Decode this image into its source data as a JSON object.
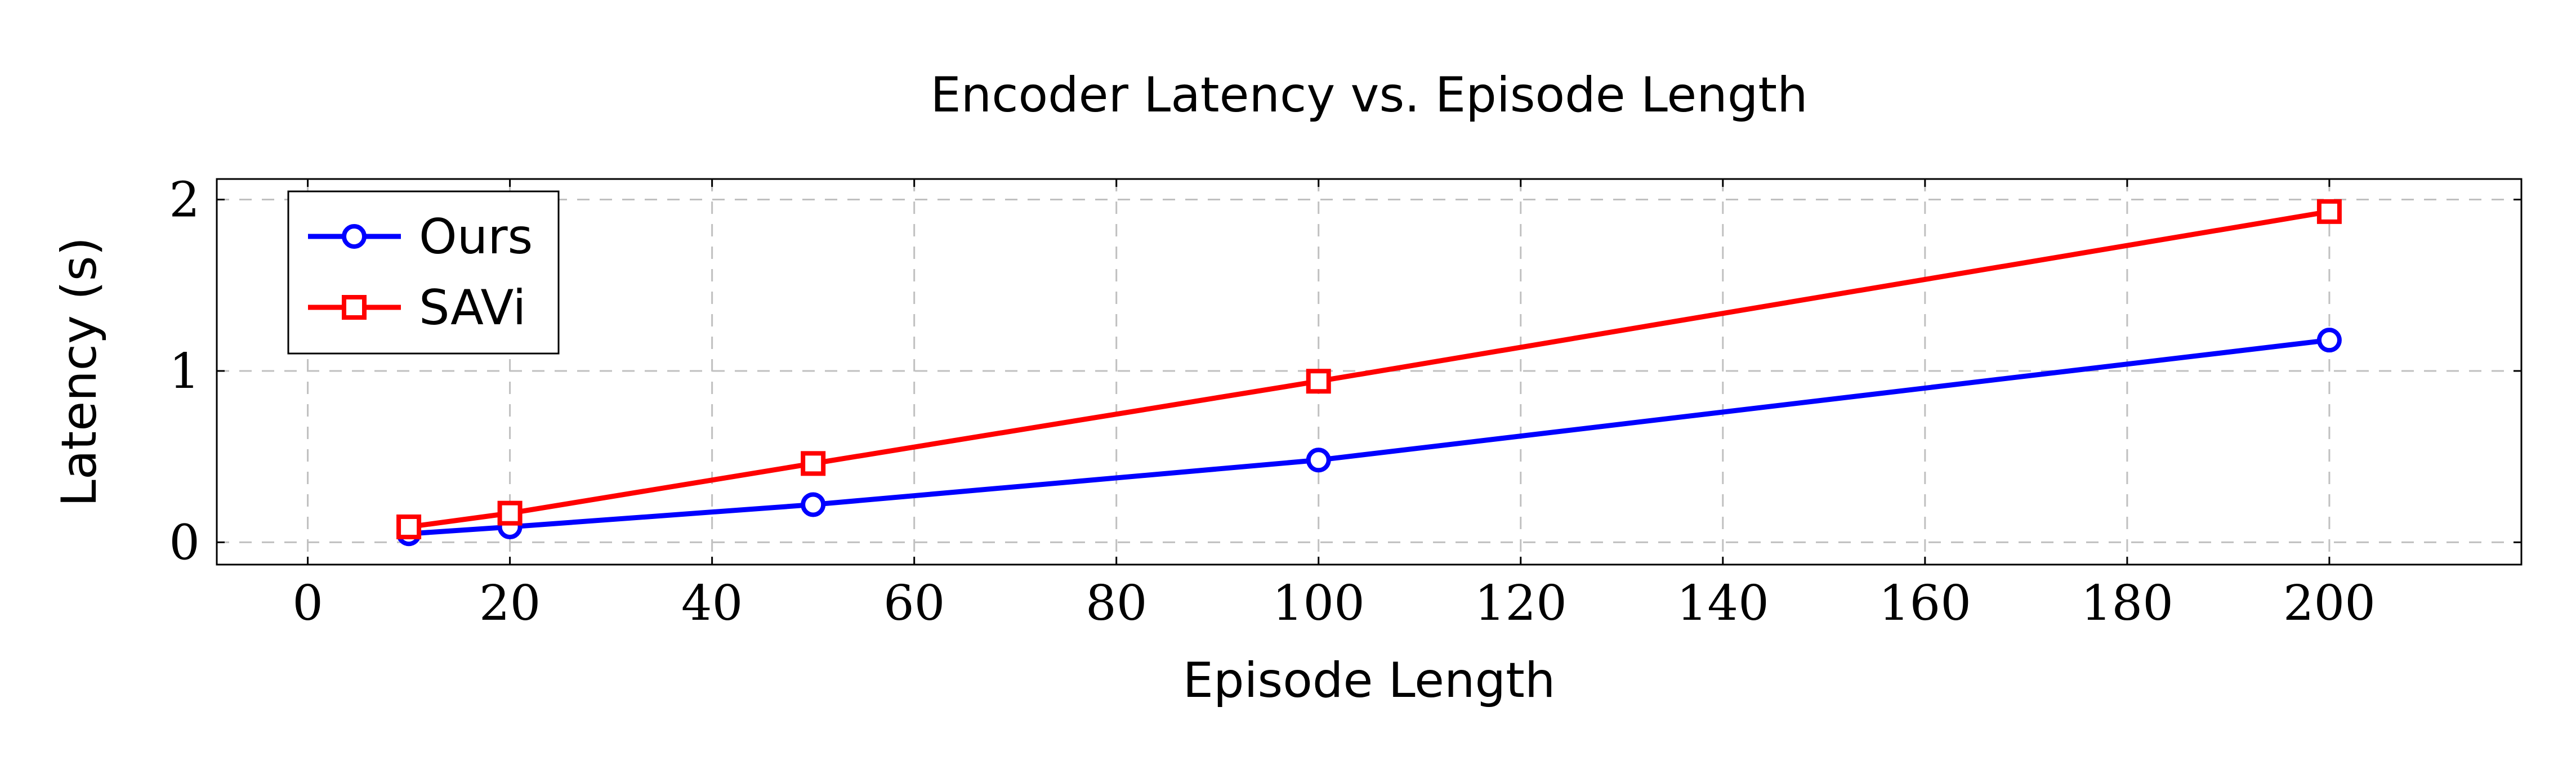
{
  "chart_data": {
    "type": "line",
    "title": "Encoder Latency vs. Episode Length",
    "xlabel": "Episode Length",
    "ylabel": "Latency (s)",
    "xlim": [
      -9,
      219
    ],
    "ylim": [
      -0.13,
      2.12
    ],
    "xticks": [
      0,
      20,
      40,
      60,
      80,
      100,
      120,
      140,
      160,
      180,
      200
    ],
    "yticks": [
      0,
      1,
      2
    ],
    "grid": true,
    "legend_position": "top-left",
    "series": [
      {
        "name": "Ours",
        "color": "#0000ff",
        "marker": "circle",
        "x": [
          10,
          20,
          50,
          100,
          200
        ],
        "y": [
          0.05,
          0.09,
          0.22,
          0.48,
          1.18
        ]
      },
      {
        "name": "SAVi",
        "color": "#ff0000",
        "marker": "square",
        "x": [
          10,
          20,
          50,
          100,
          200
        ],
        "y": [
          0.09,
          0.17,
          0.46,
          0.94,
          1.93
        ]
      }
    ]
  }
}
